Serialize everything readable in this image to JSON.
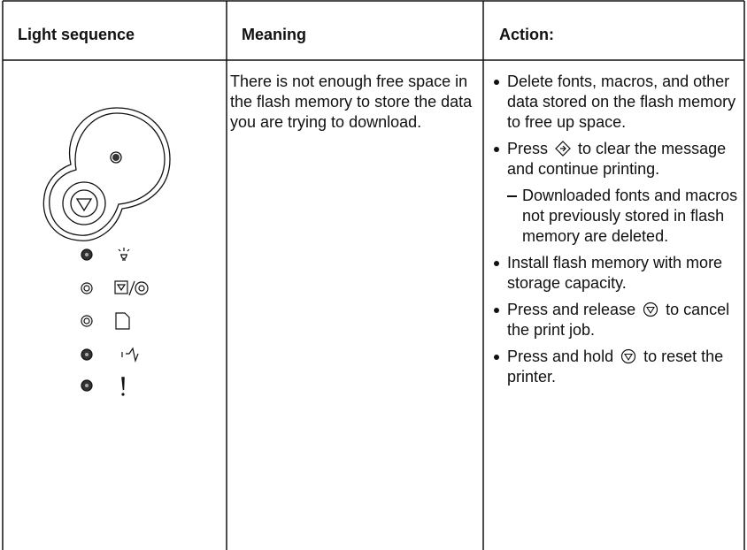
{
  "table": {
    "headers": [
      "Light sequence",
      "Meaning",
      "Action:"
    ],
    "meaning": "There is not enough free space in the flash memory to store the data you are trying to download.",
    "actions": [
      {
        "text": "Delete fonts, macros, and other data stored on the flash memory to free up space."
      },
      {
        "before": "Press",
        "after": "to clear the message and continue printing.",
        "sub": "Downloaded fonts and macros not previously stored in flash memory are deleted."
      },
      {
        "text": "Install flash memory with more storage capacity."
      },
      {
        "before": "Press and release",
        "after": "to cancel the print job."
      },
      {
        "before": "Press and hold",
        "after": "to reset the printer."
      }
    ]
  }
}
